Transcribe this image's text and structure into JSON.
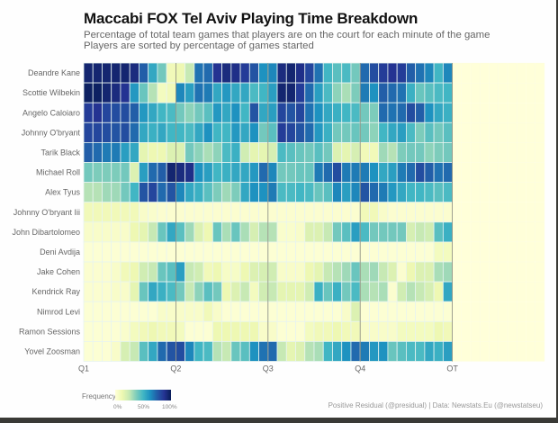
{
  "title": "Maccabi FOX Tel Aviv Playing Time Breakdown",
  "subtitle_lines": [
    "Percentage of total team games that players are on the court for each minute of the game",
    "Players are sorted by percentage of games started"
  ],
  "legend": {
    "title": "Frequency",
    "ticks": [
      "0%",
      "50%",
      "100%"
    ]
  },
  "caption": "Positive Residual (@presidual)  |  Data: Newstats.Eu (@newstatseu)",
  "chart_data": {
    "type": "heatmap",
    "title": "Maccabi FOX Tel Aviv Playing Time Breakdown",
    "xlabel": "",
    "ylabel": "",
    "colorscale": "YlGnBu",
    "value_range": [
      0,
      100
    ],
    "x_tick_labels": [
      "Q1",
      "Q2",
      "Q3",
      "Q4",
      "OT"
    ],
    "minutes_regulation": 40,
    "minutes_overtime": 10,
    "players": [
      "Deandre Kane",
      "Scottie Wilbekin",
      "Angelo Caloiaro",
      "Johnny O'bryant",
      "Tarik Black",
      "Michael Roll",
      "Alex Tyus",
      "Johnny O'bryant Iii",
      "John Dibartolomeo",
      "Deni Avdija",
      "Jake Cohen",
      "Kendrick Ray",
      "Nimrod Levi",
      "Ramon Sessions",
      "Yovel Zoosman"
    ],
    "values": [
      [
        95,
        95,
        95,
        95,
        95,
        92,
        75,
        55,
        40,
        10,
        12,
        25,
        70,
        72,
        88,
        92,
        90,
        85,
        78,
        62,
        65,
        92,
        95,
        90,
        82,
        70,
        50,
        45,
        48,
        40,
        72,
        80,
        85,
        88,
        85,
        75,
        70,
        65,
        50,
        65,
        0,
        0,
        0,
        0,
        0,
        0,
        0,
        0,
        0,
        0
      ],
      [
        98,
        98,
        95,
        92,
        88,
        60,
        42,
        28,
        8,
        10,
        65,
        58,
        70,
        68,
        55,
        60,
        55,
        55,
        48,
        50,
        58,
        95,
        95,
        85,
        72,
        58,
        48,
        35,
        30,
        38,
        68,
        62,
        75,
        72,
        70,
        52,
        42,
        45,
        48,
        50,
        0,
        0,
        0,
        0,
        0,
        0,
        0,
        0,
        0,
        0
      ],
      [
        85,
        88,
        82,
        80,
        80,
        75,
        60,
        55,
        50,
        48,
        40,
        35,
        40,
        45,
        60,
        55,
        62,
        50,
        78,
        55,
        58,
        82,
        78,
        82,
        70,
        62,
        55,
        52,
        50,
        48,
        40,
        38,
        72,
        70,
        72,
        80,
        75,
        62,
        55,
        52,
        0,
        0,
        0,
        0,
        0,
        0,
        0,
        0,
        0,
        0
      ],
      [
        82,
        82,
        80,
        78,
        80,
        72,
        55,
        52,
        55,
        50,
        50,
        48,
        55,
        62,
        50,
        50,
        60,
        55,
        62,
        40,
        45,
        85,
        82,
        78,
        72,
        60,
        52,
        40,
        40,
        42,
        40,
        35,
        50,
        55,
        58,
        48,
        38,
        45,
        40,
        45,
        0,
        0,
        0,
        0,
        0,
        0,
        0,
        0,
        0,
        0
      ],
      [
        75,
        72,
        68,
        68,
        58,
        55,
        15,
        12,
        12,
        18,
        18,
        40,
        35,
        30,
        35,
        48,
        52,
        22,
        15,
        15,
        20,
        48,
        45,
        42,
        40,
        45,
        40,
        18,
        15,
        20,
        10,
        10,
        32,
        28,
        38,
        40,
        40,
        35,
        38,
        40,
        0,
        0,
        0,
        0,
        0,
        0,
        0,
        0,
        0,
        0
      ],
      [
        40,
        38,
        38,
        38,
        40,
        18,
        58,
        72,
        75,
        95,
        92,
        90,
        62,
        58,
        50,
        52,
        55,
        55,
        60,
        72,
        65,
        40,
        40,
        42,
        42,
        68,
        72,
        80,
        68,
        68,
        68,
        62,
        55,
        58,
        68,
        72,
        80,
        75,
        70,
        72,
        0,
        0,
        0,
        0,
        0,
        0,
        0,
        0,
        0,
        0
      ],
      [
        28,
        28,
        32,
        32,
        40,
        50,
        78,
        82,
        72,
        78,
        65,
        55,
        52,
        45,
        38,
        32,
        38,
        55,
        62,
        62,
        68,
        48,
        48,
        50,
        48,
        42,
        45,
        65,
        58,
        65,
        78,
        72,
        68,
        60,
        55,
        50,
        50,
        48,
        45,
        48,
        0,
        0,
        0,
        0,
        0,
        0,
        0,
        0,
        0,
        0
      ],
      [
        10,
        10,
        10,
        10,
        10,
        10,
        5,
        4,
        3,
        3,
        3,
        3,
        3,
        3,
        3,
        3,
        3,
        3,
        3,
        3,
        3,
        3,
        3,
        3,
        3,
        3,
        3,
        3,
        3,
        3,
        10,
        10,
        5,
        3,
        3,
        3,
        3,
        3,
        3,
        3,
        0,
        0,
        0,
        0,
        0,
        0,
        0,
        0,
        0,
        0
      ],
      [
        5,
        5,
        5,
        5,
        5,
        12,
        15,
        25,
        42,
        55,
        45,
        32,
        18,
        12,
        42,
        30,
        42,
        30,
        20,
        28,
        28,
        4,
        4,
        5,
        18,
        18,
        25,
        40,
        45,
        58,
        48,
        40,
        40,
        40,
        40,
        20,
        25,
        22,
        45,
        52,
        0,
        0,
        0,
        0,
        0,
        0,
        0,
        0,
        0,
        0
      ],
      [
        2,
        2,
        2,
        2,
        2,
        2,
        2,
        2,
        2,
        2,
        2,
        2,
        2,
        2,
        2,
        2,
        2,
        2,
        2,
        2,
        2,
        2,
        2,
        2,
        2,
        2,
        2,
        2,
        2,
        2,
        2,
        2,
        2,
        2,
        2,
        2,
        2,
        2,
        8,
        8,
        0,
        0,
        0,
        0,
        0,
        0,
        0,
        0,
        0,
        0
      ],
      [
        3,
        3,
        3,
        5,
        10,
        12,
        22,
        25,
        42,
        45,
        58,
        25,
        22,
        10,
        12,
        6,
        6,
        12,
        18,
        20,
        22,
        5,
        5,
        5,
        12,
        15,
        25,
        28,
        32,
        42,
        30,
        32,
        25,
        18,
        3,
        12,
        18,
        18,
        30,
        32,
        0,
        0,
        0,
        0,
        0,
        0,
        0,
        0,
        0,
        0
      ],
      [
        3,
        3,
        3,
        5,
        5,
        15,
        42,
        55,
        52,
        48,
        40,
        25,
        35,
        45,
        40,
        12,
        18,
        25,
        8,
        22,
        25,
        15,
        15,
        15,
        22,
        52,
        42,
        52,
        40,
        48,
        30,
        28,
        30,
        3,
        22,
        28,
        25,
        20,
        12,
        55,
        0,
        0,
        0,
        0,
        0,
        0,
        0,
        0,
        0,
        0
      ],
      [
        2,
        2,
        2,
        2,
        2,
        2,
        2,
        2,
        5,
        5,
        5,
        5,
        5,
        10,
        5,
        2,
        2,
        2,
        2,
        2,
        2,
        2,
        2,
        2,
        2,
        2,
        2,
        2,
        5,
        18,
        2,
        2,
        2,
        2,
        2,
        2,
        2,
        2,
        2,
        2,
        0,
        0,
        0,
        0,
        0,
        0,
        0,
        0,
        0,
        0
      ],
      [
        2,
        2,
        2,
        2,
        4,
        8,
        10,
        12,
        10,
        10,
        8,
        2,
        2,
        2,
        12,
        12,
        12,
        12,
        12,
        5,
        5,
        2,
        2,
        2,
        8,
        10,
        10,
        12,
        10,
        10,
        5,
        5,
        5,
        5,
        8,
        8,
        8,
        8,
        12,
        10,
        0,
        0,
        0,
        0,
        0,
        0,
        0,
        0,
        0,
        0
      ],
      [
        2,
        2,
        2,
        5,
        20,
        25,
        45,
        55,
        72,
        78,
        80,
        65,
        50,
        48,
        28,
        25,
        42,
        45,
        62,
        70,
        72,
        25,
        15,
        18,
        28,
        30,
        50,
        55,
        62,
        72,
        68,
        60,
        62,
        42,
        45,
        48,
        48,
        55,
        52,
        58,
        0,
        0,
        0,
        0,
        0,
        0,
        0,
        0,
        0,
        0
      ]
    ]
  }
}
